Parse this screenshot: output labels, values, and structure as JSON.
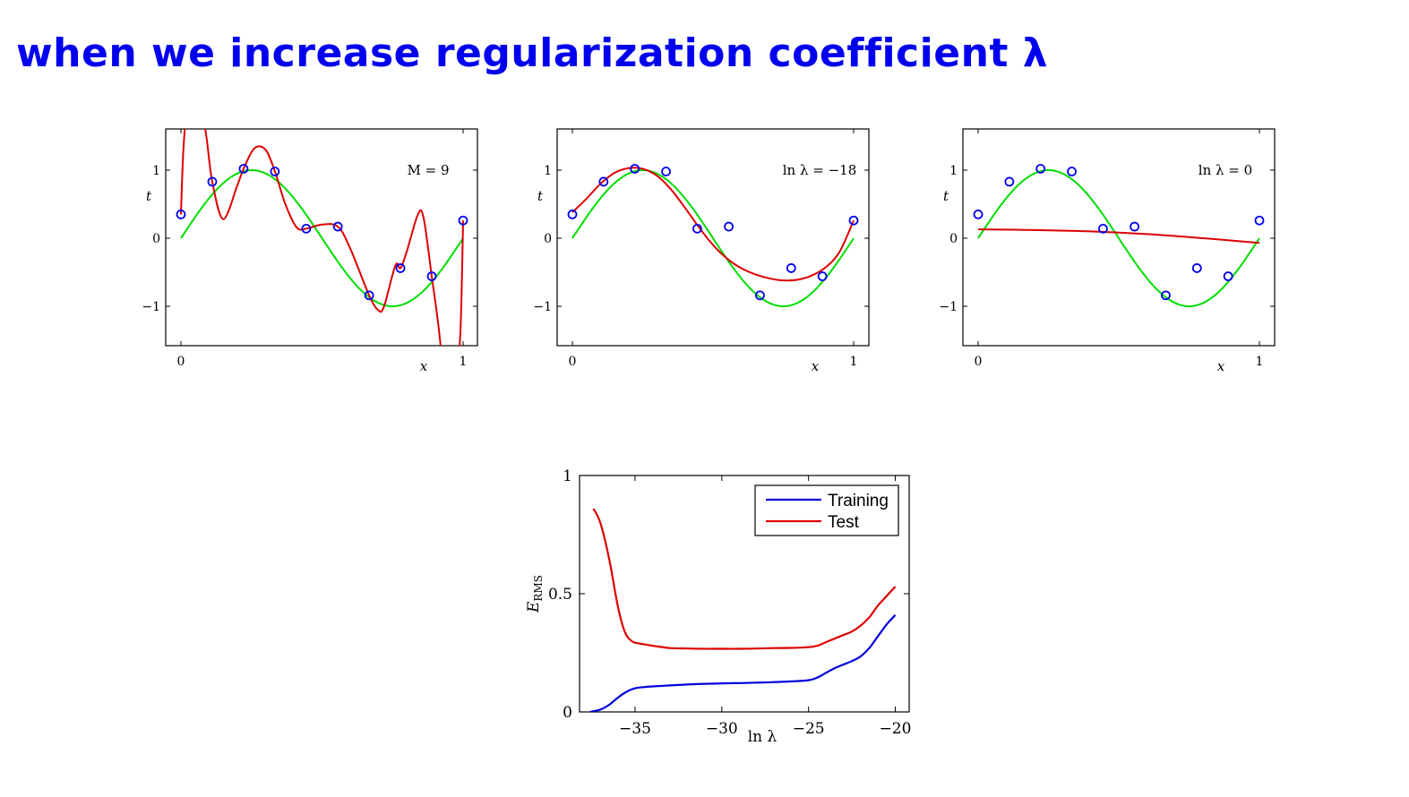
{
  "title": "when we increase regularization coefficient λ",
  "colors": {
    "title": "#0000ee",
    "data_points": "#0000ee",
    "true_curve": "#00dd00",
    "fit_curve": "#dd0000",
    "training": "#0000dd",
    "test": "#dd0000"
  },
  "chart_data": [
    {
      "type": "line",
      "annotation": "M = 9",
      "xlabel": "x",
      "ylabel": "t",
      "xlim": [
        0,
        1
      ],
      "ylim": [
        -1.6,
        1.6
      ],
      "xticks": [
        "0",
        "1"
      ],
      "yticks": [
        "−1",
        "0",
        "1"
      ],
      "points": {
        "x": [
          0,
          0.111,
          0.222,
          0.333,
          0.444,
          0.556,
          0.667,
          0.778,
          0.889,
          1
        ],
        "t": [
          0.35,
          0.83,
          1.02,
          0.98,
          0.14,
          0.17,
          -0.84,
          -0.44,
          -0.56,
          0.26
        ]
      },
      "true_curve": "sin(2πx)",
      "fit": {
        "x": [
          0,
          0.01,
          0.03,
          0.06,
          0.09,
          0.111,
          0.15,
          0.2,
          0.222,
          0.26,
          0.3,
          0.333,
          0.37,
          0.41,
          0.444,
          0.5,
          0.556,
          0.6,
          0.667,
          0.7,
          0.72,
          0.76,
          0.778,
          0.8,
          0.84,
          0.86,
          0.889,
          0.91,
          0.93,
          0.95,
          0.97,
          0.99,
          1
        ],
        "t": [
          0.35,
          1.4,
          2.2,
          2.2,
          1.5,
          0.83,
          0.28,
          0.78,
          1.02,
          1.32,
          1.3,
          0.98,
          0.5,
          0.16,
          0.14,
          0.2,
          0.17,
          -0.15,
          -0.84,
          -1.06,
          -1.0,
          -0.4,
          -0.44,
          -0.2,
          0.35,
          0.3,
          -0.56,
          -1.2,
          -1.9,
          -2.2,
          -2.2,
          -1.4,
          0.26
        ]
      }
    },
    {
      "type": "line",
      "annotation": "ln λ = −18",
      "xlabel": "x",
      "ylabel": "t",
      "xlim": [
        0,
        1
      ],
      "ylim": [
        -1.6,
        1.6
      ],
      "xticks": [
        "0",
        "1"
      ],
      "yticks": [
        "−1",
        "0",
        "1"
      ],
      "points": {
        "x": [
          0,
          0.111,
          0.222,
          0.333,
          0.444,
          0.556,
          0.667,
          0.778,
          0.889,
          1
        ],
        "t": [
          0.35,
          0.83,
          1.02,
          0.98,
          0.14,
          0.17,
          -0.84,
          -0.44,
          -0.56,
          0.26
        ]
      },
      "true_curve": "sin(2πx)",
      "fit": {
        "x": [
          0,
          0.05,
          0.1,
          0.15,
          0.2,
          0.25,
          0.3,
          0.35,
          0.4,
          0.45,
          0.5,
          0.55,
          0.6,
          0.65,
          0.7,
          0.75,
          0.8,
          0.85,
          0.9,
          0.95,
          1
        ],
        "t": [
          0.38,
          0.58,
          0.8,
          0.96,
          1.03,
          1.02,
          0.92,
          0.72,
          0.45,
          0.16,
          -0.1,
          -0.3,
          -0.44,
          -0.53,
          -0.59,
          -0.62,
          -0.61,
          -0.55,
          -0.43,
          -0.2,
          0.26
        ]
      }
    },
    {
      "type": "line",
      "annotation": "ln λ = 0",
      "xlabel": "x",
      "ylabel": "t",
      "xlim": [
        0,
        1
      ],
      "ylim": [
        -1.6,
        1.6
      ],
      "xticks": [
        "0",
        "1"
      ],
      "yticks": [
        "−1",
        "0",
        "1"
      ],
      "points": {
        "x": [
          0,
          0.111,
          0.222,
          0.333,
          0.444,
          0.556,
          0.667,
          0.778,
          0.889,
          1
        ],
        "t": [
          0.35,
          0.83,
          1.02,
          0.98,
          0.14,
          0.17,
          -0.84,
          -0.44,
          -0.56,
          0.26
        ]
      },
      "true_curve": "sin(2πx)",
      "fit": {
        "x": [
          0,
          0.2,
          0.4,
          0.6,
          0.8,
          1
        ],
        "t": [
          0.13,
          0.12,
          0.1,
          0.06,
          0.0,
          -0.07
        ]
      }
    },
    {
      "type": "line",
      "xlabel": "ln λ",
      "ylabel": "E_RMS",
      "ylabel_main": "E",
      "ylabel_sub": "RMS",
      "xlim": [
        -38.2,
        -19.2
      ],
      "ylim": [
        0,
        1
      ],
      "xticks": [
        -35,
        -30,
        -25,
        -20
      ],
      "xtick_labels": [
        "−35",
        "−30",
        "−25",
        "−20"
      ],
      "yticks": [
        0,
        0.5,
        1
      ],
      "ytick_labels": [
        "0",
        "0.5",
        "1"
      ],
      "legend_position": "top-right",
      "series": [
        {
          "name": "Training",
          "x": [
            -37.6,
            -37,
            -36.5,
            -36,
            -35.5,
            -35,
            -34.5,
            -34,
            -33,
            -32,
            -31,
            -30,
            -29,
            -28,
            -27,
            -26,
            -25,
            -24.5,
            -24,
            -23.5,
            -23,
            -22.5,
            -22,
            -21.5,
            -21,
            -20.5,
            -20
          ],
          "y": [
            0,
            0.01,
            0.03,
            0.06,
            0.085,
            0.1,
            0.105,
            0.108,
            0.112,
            0.116,
            0.119,
            0.121,
            0.122,
            0.124,
            0.126,
            0.129,
            0.134,
            0.145,
            0.165,
            0.185,
            0.2,
            0.215,
            0.235,
            0.27,
            0.32,
            0.37,
            0.41
          ]
        },
        {
          "name": "Test",
          "x": [
            -37.4,
            -37,
            -36.5,
            -36,
            -35.6,
            -35.2,
            -34.8,
            -34.4,
            -34,
            -33.5,
            -33,
            -32,
            -31,
            -30,
            -29,
            -28,
            -27,
            -26,
            -25,
            -24.5,
            -24,
            -23.5,
            -23,
            -22.5,
            -22,
            -21.5,
            -21,
            -20.5,
            -20
          ],
          "y": [
            0.86,
            0.8,
            0.65,
            0.45,
            0.34,
            0.3,
            0.29,
            0.285,
            0.28,
            0.275,
            0.27,
            0.268,
            0.267,
            0.267,
            0.267,
            0.268,
            0.27,
            0.271,
            0.274,
            0.28,
            0.295,
            0.31,
            0.325,
            0.34,
            0.365,
            0.4,
            0.45,
            0.49,
            0.53
          ]
        }
      ]
    }
  ]
}
